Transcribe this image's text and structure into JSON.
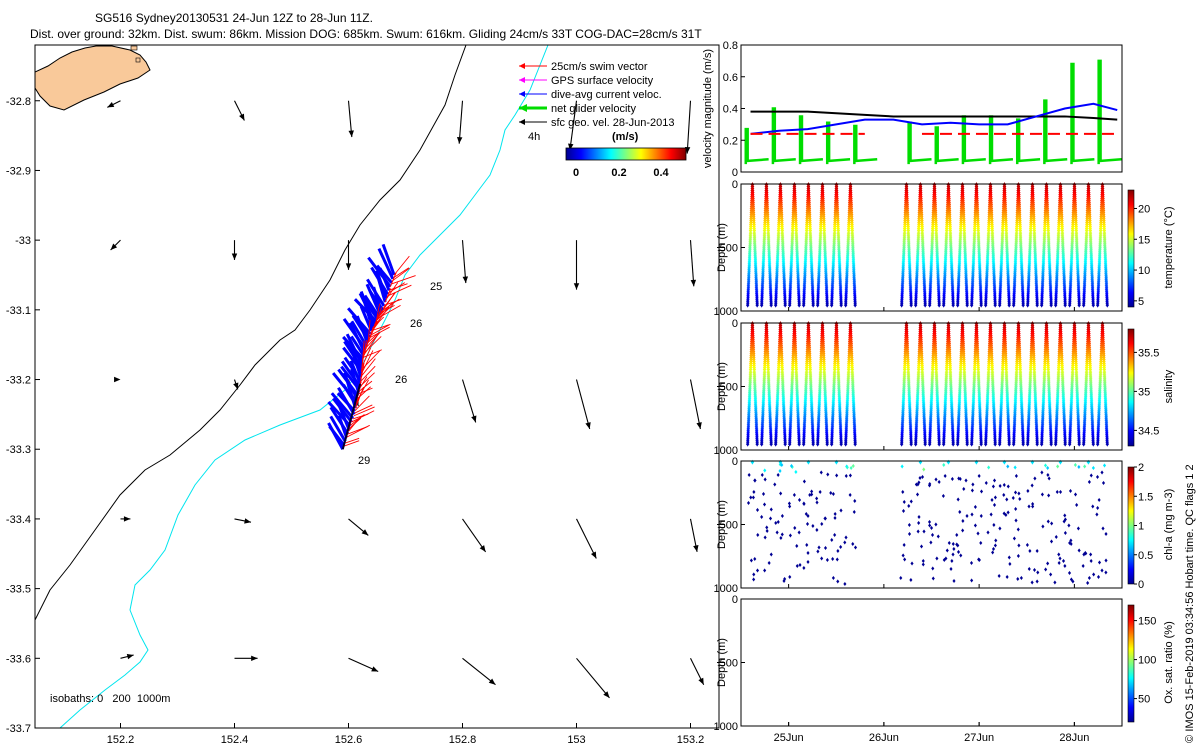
{
  "header": {
    "title": "SG516 Sydney20130531 24-Jun 12Z to 28-Jun 11Z.",
    "subtitle": "Dist. over ground: 32km. Dist. swum: 86km. Mission DOG: 685km. Swum: 616km. Gliding 24cm/s 33T COG-DAC=28cm/s 31T"
  },
  "colors": {
    "land": "#f9c99a",
    "coastline": "#000000",
    "isobath_200": "#00e5ee",
    "isobath_1000": "#000000",
    "swim_vector": "#ff0000",
    "gps_surface": "#ff00ff",
    "dive_avg": "#0000ff",
    "net_glider": "#00dd00",
    "sfc_geo": "#000000"
  },
  "map": {
    "legend": [
      {
        "label": "25cm/s swim vector",
        "color": "#ff0000"
      },
      {
        "label": "GPS surface velocity",
        "color": "#ff00ff"
      },
      {
        "label": "dive-avg current veloc.",
        "color": "#0000ff"
      },
      {
        "label": "net glider velocity",
        "color": "#00dd00"
      },
      {
        "label": "sfc geo. vel. 28-Jun-2013",
        "color": "#000000"
      }
    ],
    "age_label": "4h",
    "colorbar_title": "(m/s)",
    "colorbar_ticks": [
      "0",
      "0.2",
      "0.4"
    ],
    "isobath_label": "isobaths: 0   200  1000m",
    "day_labels": [
      "25",
      "26",
      "26",
      "29"
    ]
  },
  "chart_data": [
    {
      "type": "map",
      "xlim": [
        152.05,
        153.25
      ],
      "ylim": [
        -33.7,
        -32.72
      ],
      "xticks": [
        "152.2",
        "152.4",
        "152.6",
        "152.8",
        "153",
        "153.2"
      ],
      "yticks": [
        "-32.8",
        "-32.9",
        "-33",
        "-33.1",
        "-33.2",
        "-33.3",
        "-33.4",
        "-33.5",
        "-33.6",
        "-33.7"
      ],
      "glider_track": [
        [
          152.59,
          -33.3
        ],
        [
          152.61,
          -33.25
        ],
        [
          152.62,
          -33.21
        ],
        [
          152.625,
          -33.17
        ],
        [
          152.64,
          -33.13
        ],
        [
          152.66,
          -33.1
        ],
        [
          152.68,
          -33.05
        ]
      ],
      "geo_velocity_grid": [
        {
          "lon": 152.2,
          "lat": -32.8,
          "u": -0.04,
          "v": -0.02
        },
        {
          "lon": 152.4,
          "lat": -32.8,
          "u": 0.03,
          "v": -0.06
        },
        {
          "lon": 152.6,
          "lat": -32.8,
          "u": 0.01,
          "v": -0.11
        },
        {
          "lon": 152.8,
          "lat": -32.8,
          "u": -0.01,
          "v": -0.13
        },
        {
          "lon": 153.0,
          "lat": -32.8,
          "u": -0.02,
          "v": -0.15
        },
        {
          "lon": 153.2,
          "lat": -32.8,
          "u": -0.01,
          "v": -0.16
        },
        {
          "lon": 152.2,
          "lat": -33.0,
          "u": -0.03,
          "v": -0.03
        },
        {
          "lon": 152.4,
          "lat": -33.0,
          "u": 0.0,
          "v": -0.06
        },
        {
          "lon": 152.6,
          "lat": -33.0,
          "u": 0.0,
          "v": -0.09
        },
        {
          "lon": 152.8,
          "lat": -33.0,
          "u": 0.01,
          "v": -0.13
        },
        {
          "lon": 153.0,
          "lat": -33.0,
          "u": 0.0,
          "v": -0.15
        },
        {
          "lon": 153.2,
          "lat": -33.0,
          "u": 0.01,
          "v": -0.14
        },
        {
          "lon": 152.2,
          "lat": -33.2,
          "u": 0.0,
          "v": 0.0
        },
        {
          "lon": 152.4,
          "lat": -33.2,
          "u": 0.01,
          "v": -0.03
        },
        {
          "lon": 152.6,
          "lat": -33.2,
          "u": 0.03,
          "v": -0.08
        },
        {
          "lon": 152.8,
          "lat": -33.2,
          "u": 0.04,
          "v": -0.13
        },
        {
          "lon": 153.0,
          "lat": -33.2,
          "u": 0.04,
          "v": -0.15
        },
        {
          "lon": 153.2,
          "lat": -33.2,
          "u": 0.03,
          "v": -0.15
        },
        {
          "lon": 152.2,
          "lat": -33.4,
          "u": 0.03,
          "v": 0.0
        },
        {
          "lon": 152.4,
          "lat": -33.4,
          "u": 0.05,
          "v": -0.01
        },
        {
          "lon": 152.6,
          "lat": -33.4,
          "u": 0.06,
          "v": -0.05
        },
        {
          "lon": 152.8,
          "lat": -33.4,
          "u": 0.07,
          "v": -0.1
        },
        {
          "lon": 153.0,
          "lat": -33.4,
          "u": 0.06,
          "v": -0.12
        },
        {
          "lon": 153.2,
          "lat": -33.4,
          "u": 0.02,
          "v": -0.1
        },
        {
          "lon": 152.2,
          "lat": -33.6,
          "u": 0.04,
          "v": 0.01
        },
        {
          "lon": 152.4,
          "lat": -33.6,
          "u": 0.07,
          "v": 0.0
        },
        {
          "lon": 152.6,
          "lat": -33.6,
          "u": 0.09,
          "v": -0.04
        },
        {
          "lon": 152.8,
          "lat": -33.6,
          "u": 0.1,
          "v": -0.08
        },
        {
          "lon": 153.0,
          "lat": -33.6,
          "u": 0.1,
          "v": -0.12
        },
        {
          "lon": 153.2,
          "lat": -33.6,
          "u": 0.04,
          "v": -0.08
        }
      ]
    },
    {
      "type": "line",
      "ylabel": "velocity magnitude (m/s)",
      "ylim": [
        0,
        0.8
      ],
      "yticks": [
        "0",
        "0.2",
        "0.4",
        "0.6",
        "0.8"
      ],
      "x_days": [
        24.6,
        24.9,
        25.2,
        25.5,
        25.8,
        26.1,
        26.4,
        26.7,
        27.0,
        27.3,
        27.6,
        27.9,
        28.2,
        28.45
      ],
      "series": [
        {
          "color": "#000000",
          "values": [
            0.38,
            0.38,
            0.38,
            0.37,
            0.36,
            0.35,
            0.35,
            0.35,
            0.35,
            0.35,
            0.35,
            0.35,
            0.34,
            0.33
          ]
        },
        {
          "color": "#0000ff",
          "values": [
            0.24,
            0.26,
            0.27,
            0.3,
            0.33,
            0.33,
            0.3,
            0.31,
            0.3,
            0.3,
            0.35,
            0.4,
            0.43,
            0.39
          ]
        },
        {
          "color": "#ff0000",
          "dashed": true,
          "values": [
            0.24,
            0.24,
            0.24,
            0.24,
            0.24,
            null,
            0.24,
            0.24,
            0.24,
            0.24,
            0.24,
            0.24,
            0.24,
            0.24
          ]
        }
      ],
      "green_spikes": {
        "color": "#00dd00",
        "base": 0.05,
        "peaks": [
          0.27,
          0.4,
          0.35,
          0.31,
          0.29,
          0.3,
          0.31,
          0.28,
          0.35,
          0.35,
          0.33,
          0.45,
          0.68,
          0.7
        ]
      }
    },
    {
      "type": "scatter",
      "ylabel": "Depth (m)",
      "ylim": [
        1000,
        0
      ],
      "yticks": [
        "0",
        "500",
        "1000"
      ],
      "colorbar_label": "temperature (°C)",
      "colorbar_ticks": [
        "5",
        "10",
        "15",
        "20"
      ],
      "clim": [
        4,
        23
      ],
      "profiles_per_segment": [
        8,
        9,
        9
      ]
    },
    {
      "type": "scatter",
      "ylabel": "Depth (m)",
      "ylim": [
        1000,
        0
      ],
      "yticks": [
        "0",
        "500",
        "1000"
      ],
      "colorbar_label": "salinity",
      "colorbar_ticks": [
        "34.5",
        "35",
        "35.5"
      ],
      "clim": [
        34.3,
        35.8
      ]
    },
    {
      "type": "scatter",
      "ylabel": "Depth (m)",
      "ylim": [
        1000,
        0
      ],
      "yticks": [
        "0",
        "500",
        "1000"
      ],
      "colorbar_label": "chl-a (mg m-3)",
      "colorbar_ticks": [
        "0",
        "0.5",
        "1",
        "1.5",
        "2"
      ],
      "clim": [
        0,
        2
      ]
    },
    {
      "type": "scatter",
      "ylabel": "Depth (m)",
      "ylim": [
        1000,
        0
      ],
      "yticks": [
        "0",
        "500",
        "1000"
      ],
      "colorbar_label": "Ox. sat. ratio (%)",
      "colorbar_ticks": [
        "50",
        "100",
        "150"
      ],
      "clim": [
        20,
        170
      ],
      "xticks": [
        "25Jun",
        "26Jun",
        "27Jun",
        "28Jun"
      ]
    }
  ],
  "side_note": "IMOS 15-Feb-2019 03:34:56 Hobart time. QC flags 1  2",
  "copyright": "©"
}
